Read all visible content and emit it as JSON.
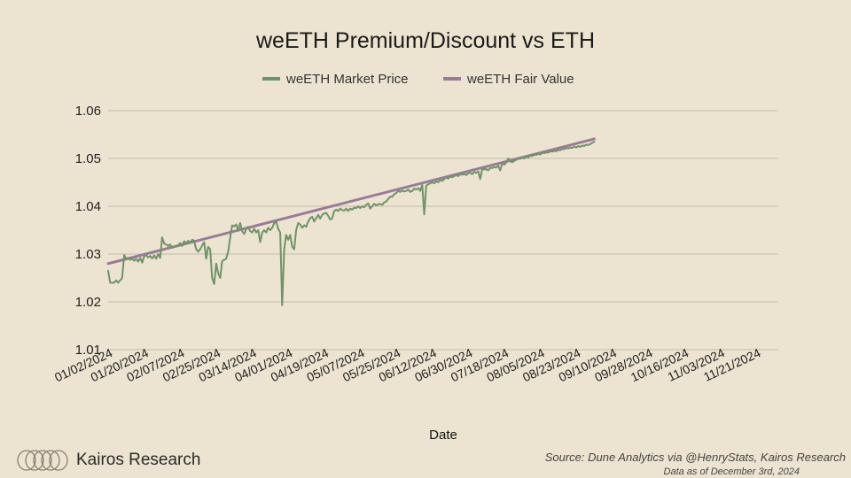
{
  "chart_data": {
    "type": "line",
    "title": "weETH Premium/Discount vs ETH",
    "xlabel": "Date",
    "ylabel": "",
    "ylim": [
      1.01,
      1.06
    ],
    "yticks": [
      "1.01",
      "1.02",
      "1.03",
      "1.04",
      "1.05",
      "1.06"
    ],
    "ytick_values": [
      1.01,
      1.02,
      1.03,
      1.04,
      1.05,
      1.06
    ],
    "x_tick_labels": [
      "01/02/2024",
      "01/20/2024",
      "02/07/2024",
      "02/25/2024",
      "03/14/2024",
      "04/01/2024",
      "04/19/2024",
      "05/07/2024",
      "05/25/2024",
      "06/12/2024",
      "06/30/2024",
      "07/18/2024",
      "08/05/2024",
      "08/23/2024",
      "09/10/2024",
      "09/28/2024",
      "10/16/2024",
      "11/03/2024",
      "11/21/2024"
    ],
    "x_tick_days": [
      0,
      18,
      36,
      54,
      72,
      90,
      108,
      126,
      144,
      162,
      180,
      198,
      216,
      234,
      252,
      270,
      288,
      306,
      324
    ],
    "x_range": [
      0,
      335
    ],
    "grid": true,
    "legend_position": "top-center",
    "series": [
      {
        "name": "weETH Market Price",
        "color": "#6e9468",
        "points": [
          [
            0,
            1.0265
          ],
          [
            1,
            1.024
          ],
          [
            3,
            1.024
          ],
          [
            4,
            1.0245
          ],
          [
            5,
            1.024
          ],
          [
            6,
            1.0245
          ],
          [
            7,
            1.025
          ],
          [
            8,
            1.0298
          ],
          [
            9,
            1.029
          ],
          [
            10,
            1.0292
          ],
          [
            11,
            1.0288
          ],
          [
            12,
            1.029
          ],
          [
            13,
            1.0286
          ],
          [
            14,
            1.029
          ],
          [
            15,
            1.0284
          ],
          [
            16,
            1.0292
          ],
          [
            17,
            1.0282
          ],
          [
            18,
            1.0295
          ],
          [
            19,
            1.0298
          ],
          [
            20,
            1.0293
          ],
          [
            21,
            1.0296
          ],
          [
            22,
            1.0291
          ],
          [
            23,
            1.0297
          ],
          [
            24,
            1.029
          ],
          [
            25,
            1.03
          ],
          [
            26,
            1.0292
          ],
          [
            27,
            1.0335
          ],
          [
            28,
            1.0322
          ],
          [
            29,
            1.032
          ],
          [
            30,
            1.0317
          ],
          [
            31,
            1.032
          ],
          [
            32,
            1.0313
          ],
          [
            33,
            1.0315
          ],
          [
            35,
            1.0318
          ],
          [
            36,
            1.0323
          ],
          [
            37,
            1.0317
          ],
          [
            38,
            1.0327
          ],
          [
            39,
            1.0322
          ],
          [
            40,
            1.0328
          ],
          [
            41,
            1.0323
          ],
          [
            42,
            1.033
          ],
          [
            43,
            1.0328
          ],
          [
            44,
            1.031
          ],
          [
            45,
            1.0305
          ],
          [
            46,
            1.031
          ],
          [
            47,
            1.0318
          ],
          [
            48,
            1.0325
          ],
          [
            49,
            1.029
          ],
          [
            50,
            1.0315
          ],
          [
            51,
            1.031
          ],
          [
            52,
            1.025
          ],
          [
            53,
            1.0237
          ],
          [
            54,
            1.028
          ],
          [
            55,
            1.026
          ],
          [
            56,
            1.025
          ],
          [
            57,
            1.0285
          ],
          [
            58,
            1.0288
          ],
          [
            59,
            1.029
          ],
          [
            60,
            1.0305
          ],
          [
            61,
            1.0335
          ],
          [
            62,
            1.036
          ],
          [
            63,
            1.0358
          ],
          [
            64,
            1.0362
          ],
          [
            65,
            1.035
          ],
          [
            66,
            1.0365
          ],
          [
            67,
            1.0348
          ],
          [
            68,
            1.0342
          ],
          [
            69,
            1.0352
          ],
          [
            70,
            1.0357
          ],
          [
            71,
            1.0348
          ],
          [
            72,
            1.0345
          ],
          [
            73,
            1.0353
          ],
          [
            74,
            1.0345
          ],
          [
            75,
            1.035
          ],
          [
            76,
            1.0325
          ],
          [
            77,
            1.0345
          ],
          [
            78,
            1.035
          ],
          [
            79,
            1.0345
          ],
          [
            80,
            1.0355
          ],
          [
            81,
            1.035
          ],
          [
            82,
            1.0355
          ],
          [
            83,
            1.0365
          ],
          [
            84,
            1.0367
          ],
          [
            85,
            1.0353
          ],
          [
            86,
            1.0345
          ],
          [
            87,
            1.0193
          ],
          [
            88,
            1.031
          ],
          [
            89,
            1.034
          ],
          [
            90,
            1.033
          ],
          [
            91,
            1.034
          ],
          [
            92,
            1.0315
          ],
          [
            93,
            1.031
          ],
          [
            94,
            1.035
          ],
          [
            95,
            1.0365
          ],
          [
            96,
            1.0362
          ],
          [
            97,
            1.0355
          ],
          [
            98,
            1.036
          ],
          [
            99,
            1.0357
          ],
          [
            100,
            1.0368
          ],
          [
            101,
            1.0375
          ],
          [
            102,
            1.0378
          ],
          [
            103,
            1.0368
          ],
          [
            104,
            1.0375
          ],
          [
            105,
            1.0382
          ],
          [
            106,
            1.0374
          ],
          [
            107,
            1.0382
          ],
          [
            108,
            1.0385
          ],
          [
            109,
            1.0386
          ],
          [
            110,
            1.038
          ],
          [
            111,
            1.0372
          ],
          [
            112,
            1.0375
          ],
          [
            113,
            1.039
          ],
          [
            114,
            1.0393
          ],
          [
            115,
            1.039
          ],
          [
            116,
            1.0395
          ],
          [
            117,
            1.0392
          ],
          [
            118,
            1.0391
          ],
          [
            119,
            1.0395
          ],
          [
            120,
            1.039
          ],
          [
            121,
            1.0395
          ],
          [
            122,
            1.0393
          ],
          [
            123,
            1.0397
          ],
          [
            124,
            1.0396
          ],
          [
            125,
            1.04
          ],
          [
            126,
            1.0396
          ],
          [
            127,
            1.04
          ],
          [
            128,
            1.0398
          ],
          [
            129,
            1.0403
          ],
          [
            130,
            1.0406
          ],
          [
            131,
            1.0395
          ],
          [
            132,
            1.04
          ],
          [
            133,
            1.0405
          ],
          [
            134,
            1.0402
          ],
          [
            135,
            1.0404
          ],
          [
            136,
            1.0405
          ],
          [
            137,
            1.0403
          ],
          [
            138,
            1.0408
          ],
          [
            139,
            1.041
          ],
          [
            140,
            1.0415
          ],
          [
            141,
            1.042
          ],
          [
            142,
            1.042
          ],
          [
            143,
            1.0425
          ],
          [
            144,
            1.0428
          ],
          [
            145,
            1.0432
          ],
          [
            146,
            1.043
          ],
          [
            147,
            1.0433
          ],
          [
            148,
            1.0431
          ],
          [
            149,
            1.0432
          ],
          [
            150,
            1.0435
          ],
          [
            151,
            1.043
          ],
          [
            152,
            1.0432
          ],
          [
            153,
            1.0437
          ],
          [
            154,
            1.0435
          ],
          [
            155,
            1.0438
          ],
          [
            156,
            1.0432
          ],
          [
            157,
            1.0445
          ],
          [
            158,
            1.0383
          ],
          [
            159,
            1.0443
          ],
          [
            160,
            1.0446
          ],
          [
            161,
            1.0448
          ],
          [
            162,
            1.045
          ],
          [
            163,
            1.0448
          ],
          [
            164,
            1.0452
          ],
          [
            165,
            1.045
          ],
          [
            166,
            1.0455
          ],
          [
            167,
            1.0453
          ],
          [
            168,
            1.0457
          ],
          [
            169,
            1.046
          ],
          [
            170,
            1.0458
          ],
          [
            171,
            1.0462
          ],
          [
            172,
            1.0461
          ],
          [
            173,
            1.0463
          ],
          [
            174,
            1.0465
          ],
          [
            175,
            1.0463
          ],
          [
            176,
            1.0467
          ],
          [
            177,
            1.0466
          ],
          [
            178,
            1.0468
          ],
          [
            179,
            1.0465
          ],
          [
            180,
            1.0469
          ],
          [
            181,
            1.047
          ],
          [
            182,
            1.0467
          ],
          [
            183,
            1.0472
          ],
          [
            184,
            1.047
          ],
          [
            185,
            1.0473
          ],
          [
            186,
            1.0457
          ],
          [
            187,
            1.0478
          ],
          [
            188,
            1.0477
          ],
          [
            189,
            1.0478
          ],
          [
            190,
            1.0475
          ],
          [
            191,
            1.048
          ],
          [
            192,
            1.048
          ],
          [
            193,
            1.0482
          ],
          [
            194,
            1.0481
          ],
          [
            195,
            1.0485
          ],
          [
            196,
            1.0475
          ],
          [
            197,
            1.049
          ],
          [
            198,
            1.0487
          ],
          [
            199,
            1.0491
          ],
          [
            200,
            1.05
          ],
          [
            201,
            1.0494
          ],
          [
            202,
            1.0492
          ],
          [
            203,
            1.0495
          ],
          [
            204,
            1.0497
          ],
          [
            205,
            1.05
          ],
          [
            206,
            1.0499
          ],
          [
            207,
            1.0502
          ],
          [
            208,
            1.05
          ],
          [
            209,
            1.0504
          ],
          [
            210,
            1.0502
          ],
          [
            211,
            1.0506
          ],
          [
            212,
            1.0505
          ],
          [
            213,
            1.0508
          ],
          [
            214,
            1.0507
          ],
          [
            215,
            1.051
          ],
          [
            216,
            1.0508
          ],
          [
            217,
            1.0512
          ],
          [
            218,
            1.0511
          ],
          [
            219,
            1.0513
          ],
          [
            220,
            1.0512
          ],
          [
            221,
            1.0515
          ],
          [
            222,
            1.0514
          ],
          [
            223,
            1.0516
          ],
          [
            224,
            1.0515
          ],
          [
            225,
            1.0518
          ],
          [
            226,
            1.0517
          ],
          [
            227,
            1.052
          ],
          [
            228,
            1.0519
          ],
          [
            229,
            1.0522
          ],
          [
            230,
            1.0521
          ],
          [
            231,
            1.0523
          ],
          [
            232,
            1.0522
          ],
          [
            233,
            1.0525
          ],
          [
            234,
            1.0523
          ],
          [
            235,
            1.0526
          ],
          [
            236,
            1.0524
          ],
          [
            237,
            1.0527
          ],
          [
            238,
            1.0526
          ],
          [
            239,
            1.0529
          ],
          [
            240,
            1.0528
          ],
          [
            241,
            1.053
          ],
          [
            242,
            1.0533
          ],
          [
            243,
            1.0535
          ]
        ]
      },
      {
        "name": "weETH Fair Value",
        "color": "#9a7a9a",
        "points": [
          [
            0,
            1.028
          ],
          [
            243,
            1.0541
          ]
        ]
      }
    ]
  },
  "footer": {
    "brand": "Kairos Research",
    "source": "Source: Dune Analytics via @HenryStats, Kairos Research",
    "as_of": "Data as of December 3rd, 2024"
  }
}
